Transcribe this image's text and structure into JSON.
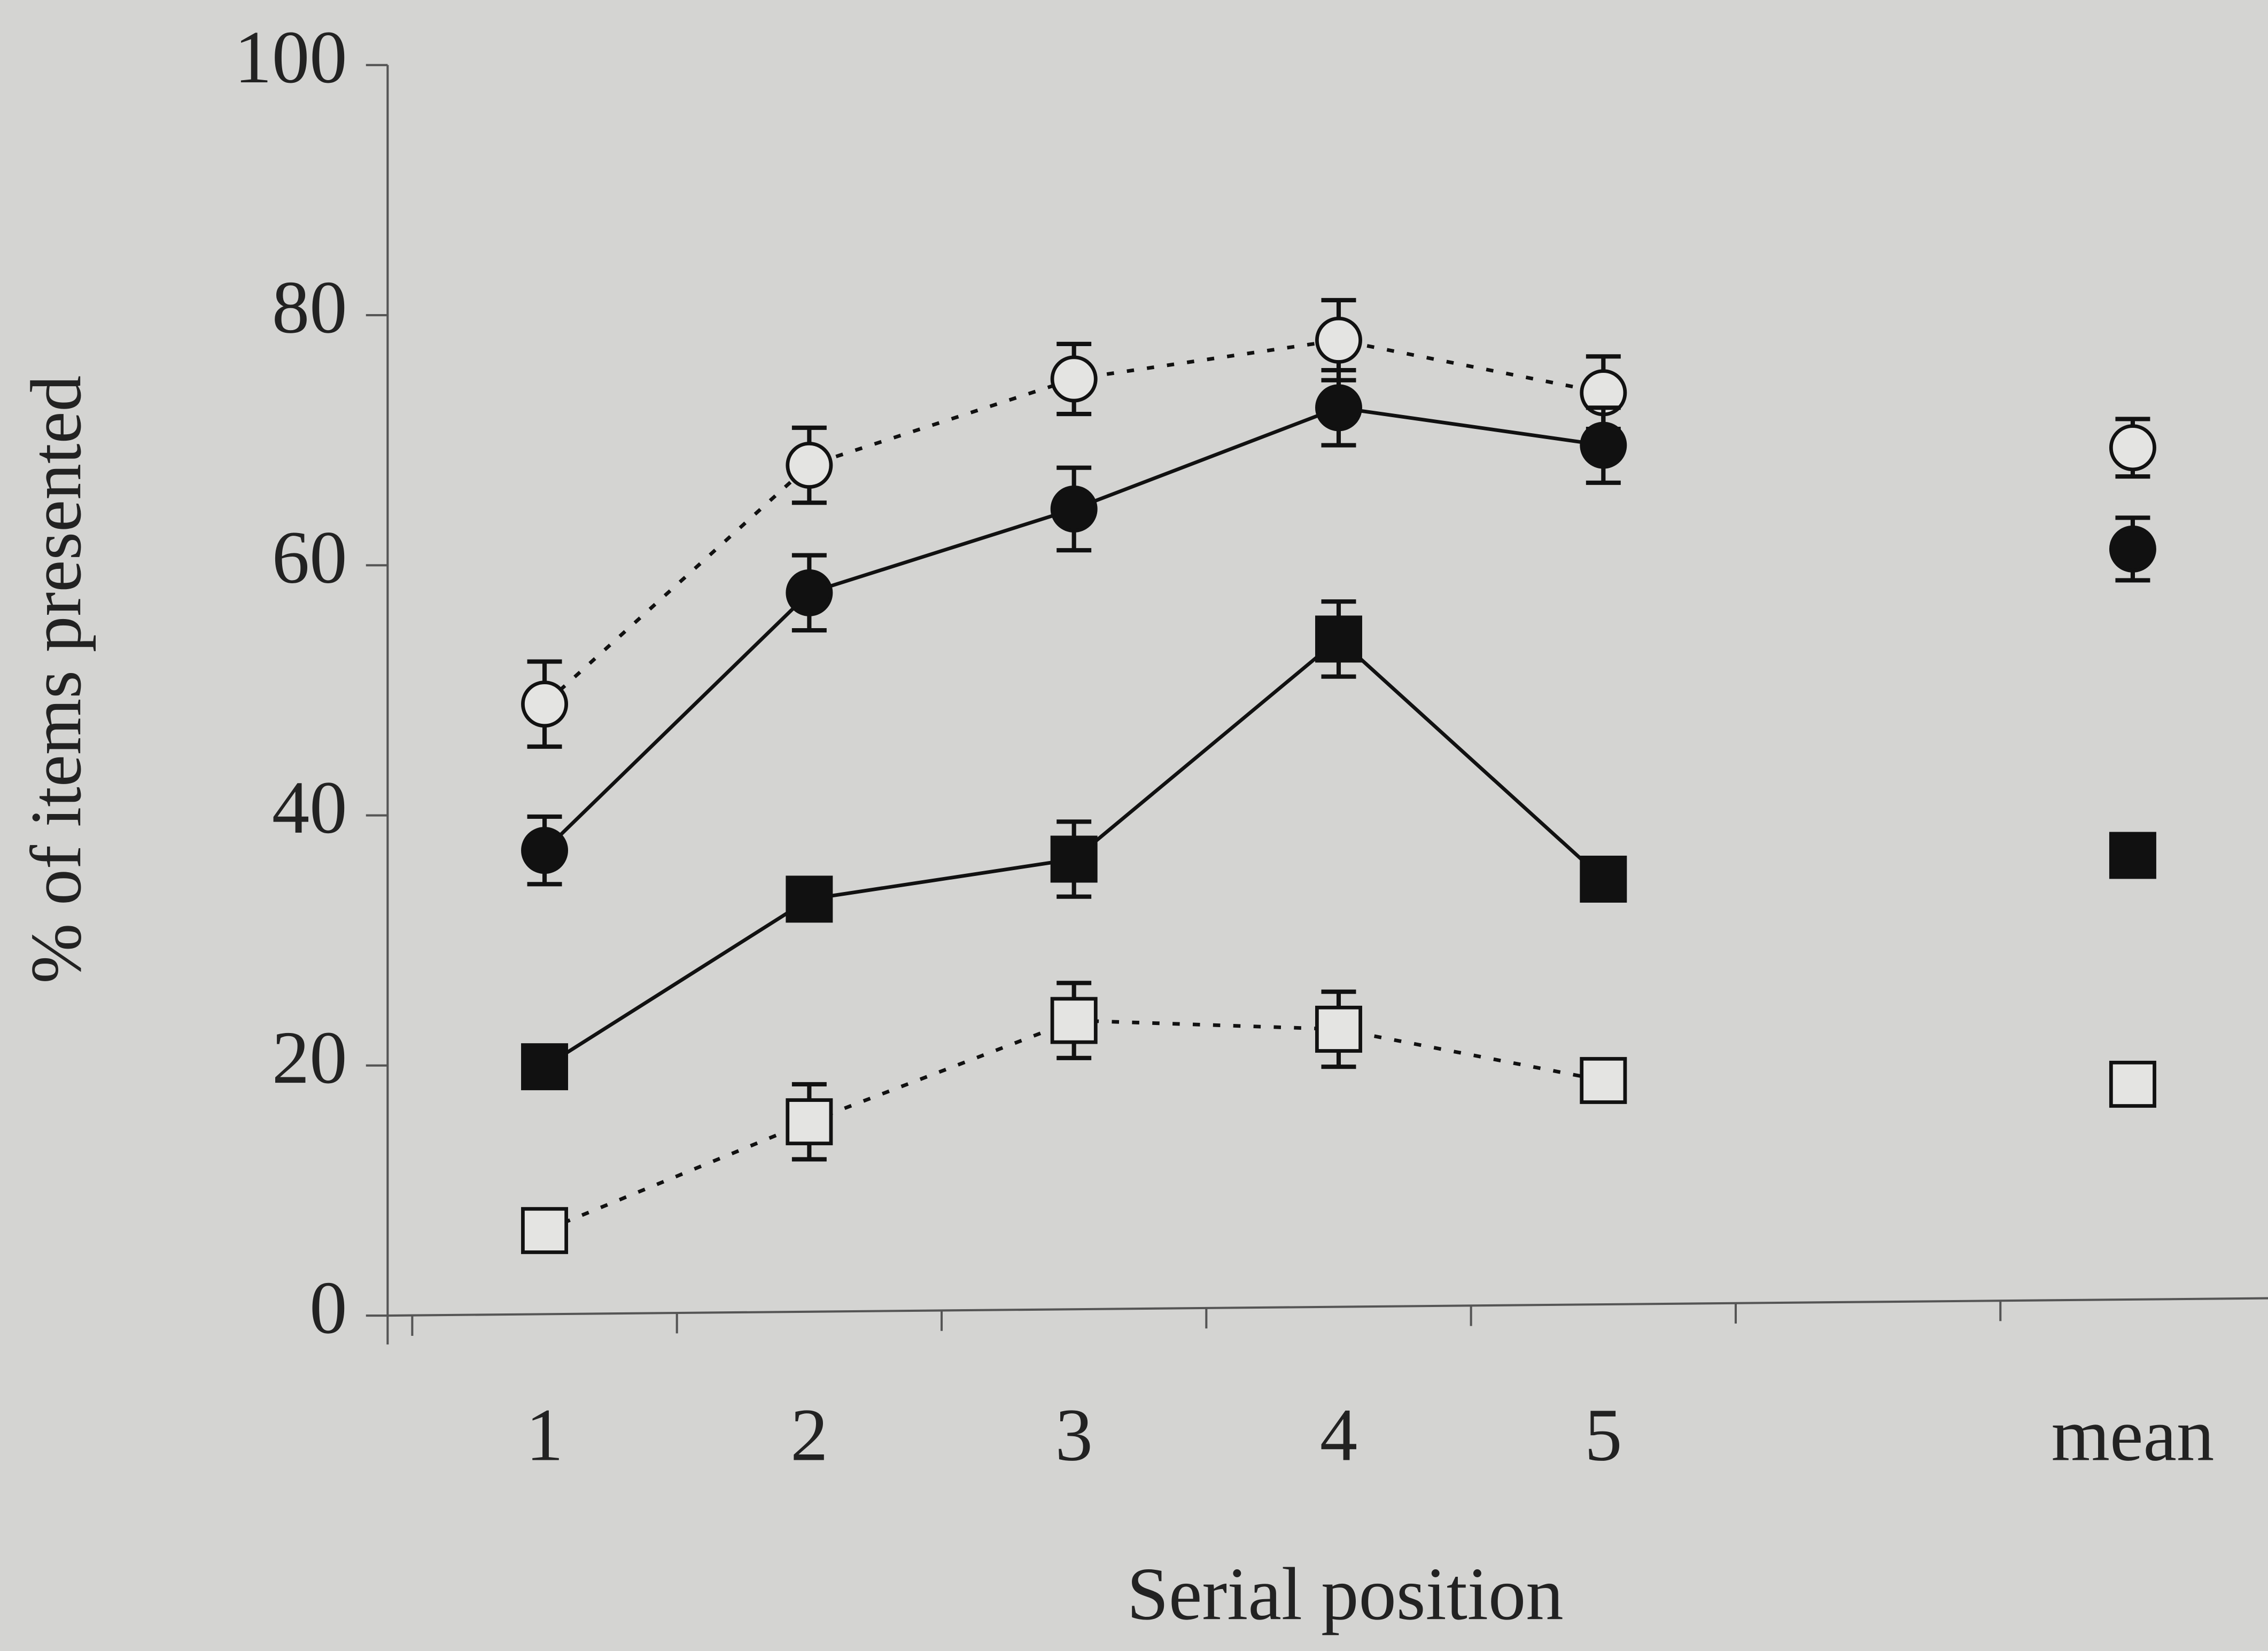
{
  "chart_data": {
    "type": "line",
    "x_label": "Serial position",
    "y_label": "% of items presented",
    "categories": [
      "1",
      "2",
      "3",
      "4",
      "5",
      null,
      "mean"
    ],
    "ylim": [
      0,
      100
    ],
    "yticks": [
      0,
      20,
      40,
      60,
      80,
      100
    ],
    "series": [
      {
        "color": "#111111",
        "line": "dotted",
        "marker": "circle",
        "fill": "open",
        "values": [
          48.9,
          68.0,
          74.9,
          78.0,
          73.8,
          null,
          69.4
        ],
        "errors": [
          3.4,
          3.0,
          2.8,
          3.2,
          2.9,
          null,
          2.3
        ]
      },
      {
        "color": "#111111",
        "line": "solid",
        "marker": "circle",
        "fill": "filled",
        "values": [
          37.2,
          57.8,
          64.5,
          72.6,
          69.6,
          null,
          61.3
        ],
        "errors": [
          2.7,
          3.0,
          3.3,
          3.0,
          3.0,
          null,
          2.5
        ]
      },
      {
        "color": "#111111",
        "line": "solid",
        "marker": "square",
        "fill": "filled",
        "values": [
          19.9,
          33.3,
          36.5,
          54.1,
          34.9,
          null,
          36.8
        ],
        "errors": [
          null,
          null,
          3.0,
          3.0,
          null,
          null,
          null
        ]
      },
      {
        "color": "#111111",
        "line": "dotted",
        "marker": "square",
        "fill": "open",
        "values": [
          6.8,
          15.5,
          23.6,
          22.9,
          18.8,
          null,
          18.5
        ],
        "errors": [
          null,
          3.0,
          3.0,
          3.0,
          null,
          null,
          null
        ]
      }
    ]
  }
}
